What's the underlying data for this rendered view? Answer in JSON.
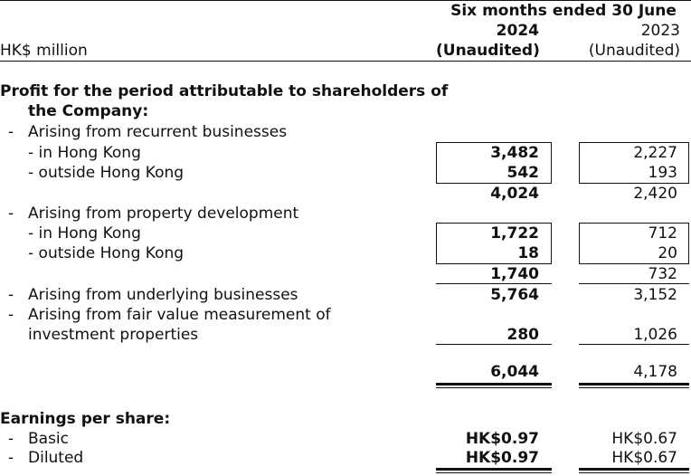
{
  "header": {
    "period_title": "Six months ended 30 June",
    "unit_label": "HK$ million",
    "col_2024_year": "2024",
    "col_2024_status": "(Unaudited)",
    "col_2023_year": "2023",
    "col_2023_status": "(Unaudited)"
  },
  "section_profit": {
    "title_line1": "Profit for the period attributable to shareholders of",
    "title_line2": "the Company:"
  },
  "rows": {
    "recurrent_heading": {
      "dash": "-",
      "label": "Arising from recurrent businesses"
    },
    "recurrent_hk": {
      "label": "- in Hong Kong",
      "v2024": "3,482",
      "v2023": "2,227"
    },
    "recurrent_outside": {
      "label": "- outside Hong Kong",
      "v2024": "542",
      "v2023": "193"
    },
    "recurrent_total": {
      "v2024": "4,024",
      "v2023": "2,420"
    },
    "development_heading": {
      "dash": "-",
      "label": "Arising from property development"
    },
    "development_hk": {
      "label": "- in Hong Kong",
      "v2024": "1,722",
      "v2023": "712"
    },
    "development_outside": {
      "label": "- outside Hong Kong",
      "v2024": "18",
      "v2023": "20"
    },
    "development_total": {
      "v2024": "1,740",
      "v2023": "732"
    },
    "underlying": {
      "dash": "-",
      "label": "Arising from underlying businesses",
      "v2024": "5,764",
      "v2023": "3,152"
    },
    "fair_value": {
      "dash": "-",
      "label_line1": "Arising from fair value measurement of",
      "label_line2": "investment properties",
      "v2024": "280",
      "v2023": "1,026"
    },
    "grand_total": {
      "v2024": "6,044",
      "v2023": "4,178"
    }
  },
  "section_eps": {
    "title": "Earnings per share:",
    "basic": {
      "dash": "-",
      "label": "Basic",
      "v2024": "HK$0.97",
      "v2023": "HK$0.67"
    },
    "diluted": {
      "dash": "-",
      "label": "Diluted",
      "v2024": "HK$0.97",
      "v2023": "HK$0.67"
    }
  }
}
